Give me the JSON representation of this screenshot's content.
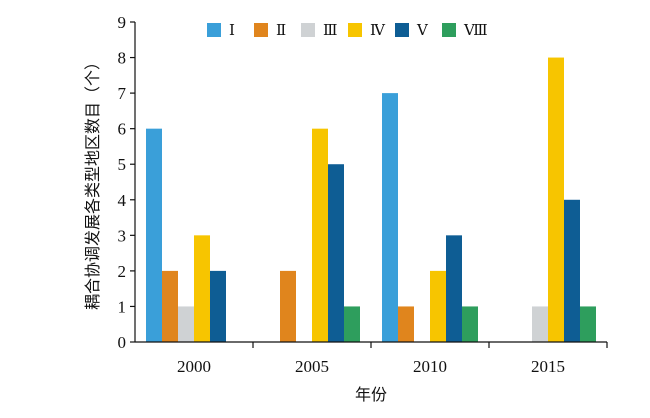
{
  "chart_data": {
    "type": "bar",
    "title": "",
    "xlabel": "年份",
    "ylabel": "耦合协调发展各类型地区数目（个）",
    "categories": [
      "2000",
      "2005",
      "2010",
      "2015"
    ],
    "ylim": [
      0,
      9
    ],
    "yticks": [
      0,
      1,
      2,
      3,
      4,
      5,
      6,
      7,
      8,
      9
    ],
    "grid": false,
    "legend_position": "top",
    "series": [
      {
        "name": "Ⅰ",
        "color": "#3a9fd9",
        "values": [
          6,
          0,
          7,
          0
        ]
      },
      {
        "name": "Ⅱ",
        "color": "#e0851d",
        "values": [
          2,
          2,
          1,
          0
        ]
      },
      {
        "name": "Ⅲ",
        "color": "#cfd2d4",
        "values": [
          1,
          0,
          0,
          1
        ]
      },
      {
        "name": "Ⅳ",
        "color": "#f7c500",
        "values": [
          3,
          6,
          2,
          8
        ]
      },
      {
        "name": "Ⅴ",
        "color": "#0e5d94",
        "values": [
          2,
          5,
          3,
          4
        ]
      },
      {
        "name": "Ⅷ",
        "color": "#2e9e5d",
        "values": [
          0,
          1,
          1,
          1
        ]
      }
    ]
  }
}
